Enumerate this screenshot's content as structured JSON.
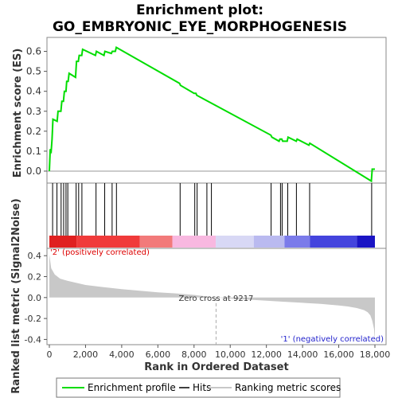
{
  "chart_data": {
    "type": "line",
    "title_line1": "Enrichment plot:",
    "title_line2": "GO_EMBRYONIC_EYE_MORPHOGENESIS",
    "es_panel": {
      "ylabel": "Enrichment score (ES)",
      "ylim": [
        -0.06,
        0.67
      ],
      "yticks": [
        "0.0",
        "0.1",
        "0.2",
        "0.3",
        "0.4",
        "0.5",
        "0.6"
      ],
      "ytick_values": [
        0.0,
        0.1,
        0.2,
        0.3,
        0.4,
        0.5,
        0.6
      ],
      "series": {
        "name": "Enrichment profile",
        "color": "#00dd00",
        "x": [
          0,
          50,
          100,
          150,
          200,
          430,
          480,
          640,
          690,
          780,
          830,
          920,
          960,
          1040,
          1090,
          1450,
          1500,
          1600,
          1650,
          1790,
          1840,
          2550,
          2600,
          3020,
          3070,
          3430,
          3480,
          3650,
          3700,
          7200,
          7250,
          8000,
          8050,
          8100,
          8150,
          12250,
          12300,
          12700,
          12750,
          12850,
          12900,
          13150,
          13200,
          13650,
          13700,
          14350,
          14400,
          17800,
          17850,
          18000
        ],
        "y": [
          0.0,
          0.11,
          0.1,
          0.16,
          0.26,
          0.25,
          0.3,
          0.3,
          0.35,
          0.35,
          0.4,
          0.4,
          0.45,
          0.45,
          0.49,
          0.47,
          0.55,
          0.55,
          0.58,
          0.58,
          0.61,
          0.58,
          0.6,
          0.58,
          0.6,
          0.59,
          0.6,
          0.6,
          0.62,
          0.44,
          0.43,
          0.39,
          0.39,
          0.39,
          0.38,
          0.18,
          0.17,
          0.15,
          0.16,
          0.16,
          0.15,
          0.15,
          0.17,
          0.15,
          0.16,
          0.13,
          0.14,
          -0.05,
          0.01,
          0.01
        ]
      }
    },
    "hits": [
      180,
      420,
      650,
      790,
      920,
      1020,
      1480,
      1620,
      1800,
      2580,
      3060,
      3470,
      3710,
      7230,
      8040,
      8170,
      8710,
      8960,
      12260,
      12780,
      12870,
      13180,
      13660,
      14390,
      17820
    ],
    "metric_panel": {
      "ylabel": "Ranked list metric (Signal2Noise)",
      "ylim": [
        -0.45,
        0.47
      ],
      "yticks": [
        "0.4",
        "0.2",
        "0.0",
        "-0.2",
        "-0.4"
      ],
      "ytick_values": [
        0.4,
        0.2,
        0.0,
        -0.2,
        -0.4
      ],
      "x": [
        0,
        100,
        300,
        600,
        1000,
        1500,
        2000,
        3000,
        4000,
        5000,
        6000,
        7000,
        8000,
        9217,
        10000,
        11000,
        12000,
        13000,
        14000,
        15000,
        16000,
        16500,
        17000,
        17400,
        17600,
        17750,
        17850,
        17950,
        18000
      ],
      "values": [
        0.41,
        0.28,
        0.22,
        0.18,
        0.16,
        0.14,
        0.12,
        0.1,
        0.08,
        0.065,
        0.05,
        0.04,
        0.025,
        0.0,
        -0.01,
        -0.02,
        -0.03,
        -0.04,
        -0.05,
        -0.06,
        -0.075,
        -0.085,
        -0.1,
        -0.12,
        -0.14,
        -0.17,
        -0.22,
        -0.3,
        -0.42
      ],
      "zero_cross_label": "Zero cross at 9217",
      "zero_cross_value": 9217,
      "pos_label": "'2' (positively correlated)",
      "neg_label": "'1' (negatively correlated)",
      "pos_color": "#dd0000",
      "neg_color": "#2222cc"
    },
    "xaxis": {
      "xlabel": "Rank in Ordered Dataset",
      "xlim": [
        0,
        18000
      ],
      "xticks": [
        "0",
        "2,000",
        "4,000",
        "6,000",
        "8,000",
        "10,000",
        "12,000",
        "14,000",
        "16,000",
        "18,000"
      ],
      "xtick_values": [
        0,
        2000,
        4000,
        6000,
        8000,
        10000,
        12000,
        14000,
        16000,
        18000
      ]
    },
    "heat_bands": [
      {
        "from": 0,
        "to": 1500,
        "color": "#e02020"
      },
      {
        "from": 1500,
        "to": 5000,
        "color": "#f03a3a"
      },
      {
        "from": 5000,
        "to": 6800,
        "color": "#f27a7a"
      },
      {
        "from": 6800,
        "to": 9200,
        "color": "#f8b8e0"
      },
      {
        "from": 9200,
        "to": 11300,
        "color": "#d8d8f5"
      },
      {
        "from": 11300,
        "to": 13000,
        "color": "#babaf0"
      },
      {
        "from": 13000,
        "to": 14400,
        "color": "#7b7bea"
      },
      {
        "from": 14400,
        "to": 17000,
        "color": "#4444dd"
      },
      {
        "from": 17000,
        "to": 18000,
        "color": "#1a14c4"
      }
    ],
    "legend": [
      {
        "label": "Enrichment profile",
        "color": "#00dd00"
      },
      {
        "label": "Hits",
        "color": "#000000"
      },
      {
        "label": "Ranking metric scores",
        "color": "#c8c8c8"
      }
    ]
  }
}
